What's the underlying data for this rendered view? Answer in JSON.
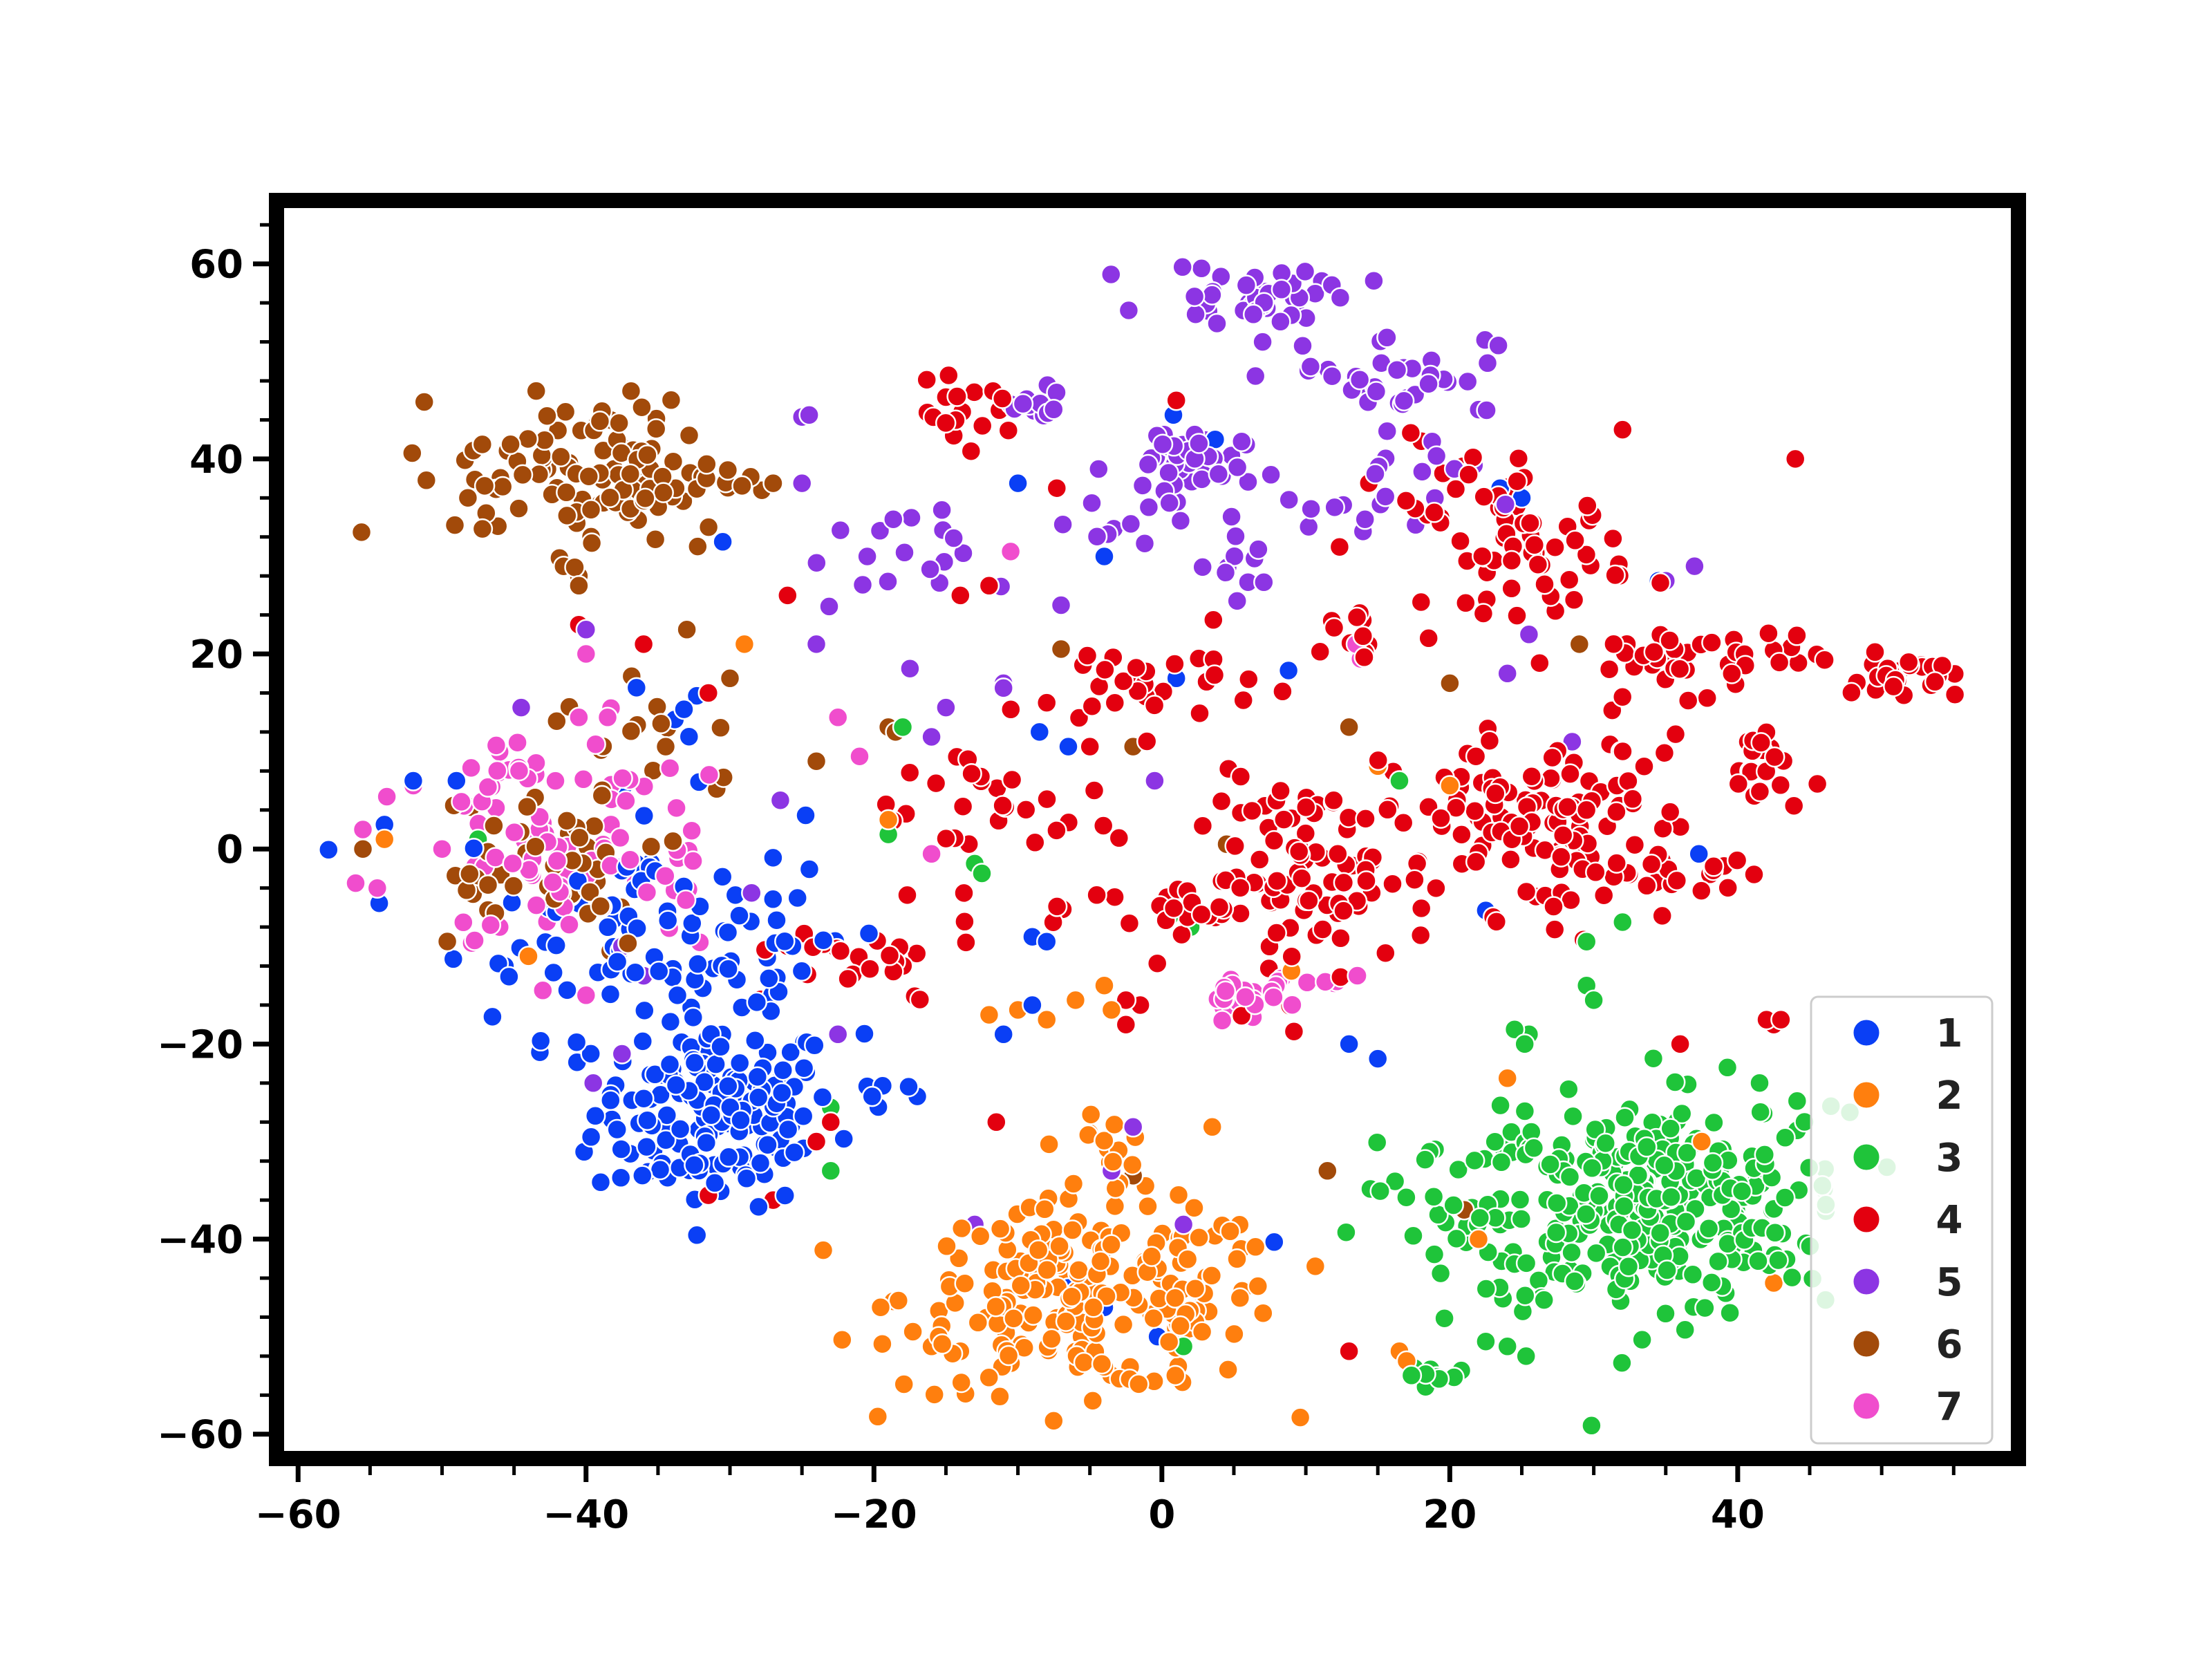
{
  "chart_data": {
    "type": "scatter",
    "title": "",
    "xlabel": "",
    "ylabel": "",
    "xlim": [
      -61.5,
      59.5
    ],
    "ylim": [
      -62.5,
      66.5
    ],
    "x_ticks": [
      -60,
      -40,
      -20,
      0,
      20,
      40
    ],
    "y_ticks": [
      -60,
      -40,
      -20,
      0,
      20,
      40,
      60
    ],
    "x_tick_labels": [
      "−60",
      "−40",
      "−20",
      "0",
      "20",
      "40"
    ],
    "y_tick_labels": [
      "−60",
      "−40",
      "−20",
      "0",
      "20",
      "40",
      "60"
    ],
    "grid": false,
    "legend_position": "lower-right",
    "series": [
      {
        "name": "1",
        "color": "#0a3ff5",
        "clusters": [
          {
            "cx": -31,
            "cy": -27,
            "sx": 4.2,
            "sy": 4.8,
            "n": 170
          },
          {
            "cx": -37,
            "cy": -7,
            "sx": 6,
            "sy": 6,
            "n": 80
          },
          {
            "cx": -28,
            "cy": -12,
            "sx": 3,
            "sy": 3,
            "n": 22
          },
          {
            "cx": -19,
            "cy": -25,
            "sx": 1.5,
            "sy": 1.5,
            "n": 6
          },
          {
            "cx": -33,
            "cy": 14,
            "sx": 2,
            "sy": 2,
            "n": 5
          }
        ],
        "points": [
          [
            -10,
            37.5
          ],
          [
            -4,
            30
          ],
          [
            1,
            17.5
          ],
          [
            8.8,
            18.3
          ],
          [
            -8.5,
            12
          ],
          [
            -6.5,
            10.5
          ],
          [
            -5,
            10.5
          ],
          [
            -9,
            -9
          ],
          [
            -8,
            -9.5
          ],
          [
            -9,
            -16
          ],
          [
            -11,
            -19
          ],
          [
            7.8,
            -40.3
          ],
          [
            13,
            -20
          ],
          [
            15,
            -21.5
          ],
          [
            -6.5,
            -45
          ],
          [
            -4,
            -47
          ],
          [
            -0.3,
            -50
          ],
          [
            3.7,
            42
          ],
          [
            0.8,
            44.5
          ],
          [
            25,
            36
          ],
          [
            23.5,
            37
          ],
          [
            34.5,
            27.5
          ],
          [
            37.3,
            -0.5
          ],
          [
            22.5,
            -6.3
          ],
          [
            -46.5,
            -17.2
          ],
          [
            -54,
            2.5
          ],
          [
            -52,
            7
          ],
          [
            -49,
            7
          ],
          [
            -30.5,
            31.5
          ]
        ]
      },
      {
        "name": "2",
        "color": "#ff7f0e",
        "clusters": [
          {
            "cx": -5,
            "cy": -46,
            "sx": 6.5,
            "sy": 4.8,
            "n": 220
          },
          {
            "cx": -4,
            "cy": -31,
            "sx": 1.5,
            "sy": 2.5,
            "n": 12
          }
        ],
        "points": [
          [
            -16,
            -51
          ],
          [
            -15.5,
            -50
          ],
          [
            -14,
            -51.5
          ],
          [
            -12,
            -17
          ],
          [
            -10,
            -16.5
          ],
          [
            -8,
            -17.5
          ],
          [
            -6,
            -15.5
          ],
          [
            -4,
            -14
          ],
          [
            -3.5,
            -16.5
          ],
          [
            3.5,
            -28.5
          ],
          [
            5.5,
            -41
          ],
          [
            6.5,
            -40.8
          ],
          [
            9,
            -12.5
          ],
          [
            17,
            -52.5
          ],
          [
            16.5,
            -51.5
          ],
          [
            24,
            -23.5
          ],
          [
            22,
            -40
          ],
          [
            37.8,
            -39.7
          ],
          [
            37.5,
            -30
          ],
          [
            42.5,
            -44.5
          ],
          [
            2.8,
            -49.5
          ],
          [
            -29,
            21
          ],
          [
            -19,
            3
          ],
          [
            -44,
            -11
          ],
          [
            -54,
            1
          ],
          [
            20,
            6.5
          ],
          [
            15,
            8.5
          ]
        ]
      },
      {
        "name": "3",
        "color": "#1fc43a",
        "clusters": [
          {
            "cx": 33,
            "cy": -37,
            "sx": 5.5,
            "sy": 5.5,
            "n": 260
          },
          {
            "cx": 40,
            "cy": -33,
            "sx": 3.5,
            "sy": 6,
            "n": 40
          },
          {
            "cx": 21,
            "cy": -37,
            "sx": 3,
            "sy": 5,
            "n": 40
          },
          {
            "cx": 19,
            "cy": -54,
            "sx": 1.3,
            "sy": 0.8,
            "n": 10
          }
        ],
        "points": [
          [
            24,
            -51
          ],
          [
            25.3,
            -52
          ],
          [
            22.5,
            -50.5
          ],
          [
            25.5,
            -19
          ],
          [
            24.5,
            -18.5
          ],
          [
            25.2,
            -20
          ],
          [
            29.5,
            -14
          ],
          [
            30,
            -15.5
          ],
          [
            29.5,
            -9.5
          ],
          [
            32,
            -7.5
          ],
          [
            34.5,
            -0.5
          ],
          [
            12.8,
            -39.3
          ],
          [
            16.5,
            7
          ],
          [
            2,
            -8
          ],
          [
            0.5,
            -7
          ],
          [
            -13,
            -1.5
          ],
          [
            -12.5,
            -2.5
          ],
          [
            -19,
            1.5
          ],
          [
            -18,
            12.5
          ],
          [
            -23,
            -33
          ],
          [
            -23,
            -26.5
          ],
          [
            1.5,
            -51
          ],
          [
            -47.5,
            1
          ]
        ]
      },
      {
        "name": "4",
        "color": "#e3000f",
        "clusters": [
          {
            "cx": 26.5,
            "cy": 2.5,
            "sx": 5.5,
            "sy": 4.5,
            "n": 130
          },
          {
            "cx": 11,
            "cy": -3,
            "sx": 4,
            "sy": 5,
            "n": 80
          },
          {
            "cx": 25.5,
            "cy": 30.5,
            "sx": 3.5,
            "sy": 3,
            "n": 55
          },
          {
            "cx": 37,
            "cy": 19.5,
            "sx": 4.5,
            "sy": 1.8,
            "n": 45
          },
          {
            "cx": 51.5,
            "cy": 17.5,
            "sx": 1.8,
            "sy": 1.2,
            "n": 25
          },
          {
            "cx": 42,
            "cy": 8.5,
            "sx": 1.3,
            "sy": 2.5,
            "n": 18
          },
          {
            "cx": -1,
            "cy": 17,
            "sx": 4,
            "sy": 2.5,
            "n": 28
          },
          {
            "cx": -14,
            "cy": 44.5,
            "sx": 2,
            "sy": 1.5,
            "n": 18
          },
          {
            "cx": 3,
            "cy": -6,
            "sx": 4,
            "sy": 2.5,
            "n": 25
          },
          {
            "cx": -22,
            "cy": -12,
            "sx": 5,
            "sy": 2.5,
            "n": 25
          },
          {
            "cx": -12,
            "cy": 4,
            "sx": 5,
            "sy": 4,
            "n": 30
          },
          {
            "cx": 14,
            "cy": 22,
            "sx": 2,
            "sy": 2,
            "n": 12
          },
          {
            "cx": 20,
            "cy": 38,
            "sx": 2.5,
            "sy": 2.5,
            "n": 15
          },
          {
            "cx": 34.5,
            "cy": -3.5,
            "sx": 3.5,
            "sy": 1.5,
            "n": 15
          }
        ],
        "points": [
          [
            -2.5,
            -15.5
          ],
          [
            -1.5,
            -16
          ],
          [
            -2.5,
            -18
          ],
          [
            -11.5,
            -28
          ],
          [
            -7.3,
            37
          ],
          [
            1,
            46
          ],
          [
            11.5,
            -33
          ],
          [
            13,
            -51.5
          ],
          [
            -27,
            -36
          ],
          [
            -31.5,
            -35.5
          ],
          [
            -24,
            -30
          ],
          [
            -23,
            -28
          ],
          [
            -26,
            26
          ],
          [
            -8,
            15
          ],
          [
            -5,
            10.5
          ],
          [
            -14,
            26
          ],
          [
            -12,
            27
          ],
          [
            43,
            -17.5
          ],
          [
            42,
            -17.5
          ],
          [
            42.5,
            -18
          ],
          [
            36,
            -20
          ],
          [
            44,
            40
          ],
          [
            32,
            43
          ],
          [
            -31.5,
            16
          ],
          [
            -36,
            21
          ],
          [
            -40.5,
            23
          ]
        ]
      },
      {
        "name": "5",
        "color": "#8c35e3",
        "clusters": [
          {
            "cx": 7,
            "cy": 57,
            "sx": 3.5,
            "sy": 1.5,
            "n": 40
          },
          {
            "cx": 16,
            "cy": 49,
            "sx": 3.5,
            "sy": 2.2,
            "n": 35
          },
          {
            "cx": 1,
            "cy": 39,
            "sx": 2.3,
            "sy": 2.3,
            "n": 45
          },
          {
            "cx": -9,
            "cy": 45.5,
            "sx": 1.5,
            "sy": 1,
            "n": 14
          },
          {
            "cx": -19,
            "cy": 29.5,
            "sx": 2.8,
            "sy": 2.5,
            "n": 18
          },
          {
            "cx": 16,
            "cy": 37,
            "sx": 3,
            "sy": 4,
            "n": 22
          },
          {
            "cx": 5,
            "cy": 28,
            "sx": 1.2,
            "sy": 2,
            "n": 10
          },
          {
            "cx": -3,
            "cy": 32,
            "sx": 1.5,
            "sy": 0.8,
            "n": 6
          }
        ],
        "points": [
          [
            -24.5,
            44.5
          ],
          [
            -25,
            44.3
          ],
          [
            -24,
            21
          ],
          [
            -7,
            25
          ],
          [
            -11,
            17
          ],
          [
            -16,
            11.5
          ],
          [
            -17.5,
            18.5
          ],
          [
            -15,
            14.5
          ],
          [
            -11,
            16.5
          ],
          [
            -25,
            37.5
          ],
          [
            -0.5,
            7
          ],
          [
            6.5,
            48.5
          ],
          [
            7,
            52
          ],
          [
            37,
            29
          ],
          [
            35,
            27.5
          ],
          [
            28.5,
            11
          ],
          [
            25.5,
            22
          ],
          [
            24,
            18
          ],
          [
            -2,
            -28.5
          ],
          [
            -3.5,
            -33
          ],
          [
            1.5,
            -38.5
          ],
          [
            -13,
            -38.5
          ],
          [
            -37.5,
            -21
          ],
          [
            -39.5,
            -24
          ],
          [
            -40,
            22.5
          ],
          [
            -37.5,
            -10
          ],
          [
            -36,
            -13
          ],
          [
            -22.5,
            -19
          ],
          [
            -28.5,
            -4.5
          ],
          [
            -26.5,
            5
          ],
          [
            -44.5,
            14.5
          ]
        ]
      },
      {
        "name": "6",
        "color": "#a24a0a",
        "clusters": [
          {
            "cx": -39,
            "cy": 38.5,
            "sx": 5,
            "sy": 4,
            "n": 120
          },
          {
            "cx": -44,
            "cy": -1,
            "sx": 5,
            "sy": 5,
            "n": 45
          },
          {
            "cx": -35,
            "cy": 11,
            "sx": 3.5,
            "sy": 4,
            "n": 18
          }
        ],
        "points": [
          [
            -40.5,
            27
          ],
          [
            -40.5,
            28
          ],
          [
            -27,
            37.5
          ],
          [
            -33,
            22.5
          ],
          [
            -30,
            17.5
          ],
          [
            -7,
            20.5
          ],
          [
            -2,
            10.5
          ],
          [
            4.5,
            0.5
          ],
          [
            -2,
            -33.5
          ],
          [
            11.5,
            -33
          ],
          [
            21,
            -37
          ],
          [
            13,
            12.5
          ],
          [
            20,
            17
          ],
          [
            29,
            21
          ],
          [
            -19,
            12.5
          ],
          [
            -18.5,
            12
          ],
          [
            -24,
            9
          ],
          [
            -55.5,
            0
          ]
        ]
      },
      {
        "name": "7",
        "color": "#f04dcd",
        "clusters": [
          {
            "cx": -42,
            "cy": -2,
            "sx": 3.5,
            "sy": 3.5,
            "n": 60
          },
          {
            "cx": -45,
            "cy": 7.5,
            "sx": 2,
            "sy": 2,
            "n": 18
          },
          {
            "cx": 5.5,
            "cy": -15,
            "sx": 1.3,
            "sy": 1.2,
            "n": 20
          },
          {
            "cx": 10,
            "cy": -13.5,
            "sx": 1.5,
            "sy": 0.5,
            "n": 8
          },
          {
            "cx": -37,
            "cy": 7,
            "sx": 2.5,
            "sy": 3,
            "n": 12
          },
          {
            "cx": -33,
            "cy": 0,
            "sx": 2,
            "sy": 3,
            "n": 10
          }
        ],
        "points": [
          [
            -56,
            -3.5
          ],
          [
            -54.5,
            -4
          ],
          [
            -55.5,
            2
          ],
          [
            -52,
            6.5
          ],
          [
            -50,
            0
          ],
          [
            -40,
            20
          ],
          [
            -40.5,
            13.5
          ],
          [
            -38.5,
            13.5
          ],
          [
            -22.5,
            13.5
          ],
          [
            -21,
            9.5
          ],
          [
            -16,
            -0.5
          ],
          [
            -10.5,
            30.5
          ],
          [
            13.5,
            21
          ],
          [
            13.8,
            19.5
          ],
          [
            -40,
            -15
          ],
          [
            -43,
            -14.5
          ],
          [
            -46,
            -8
          ]
        ]
      }
    ]
  }
}
